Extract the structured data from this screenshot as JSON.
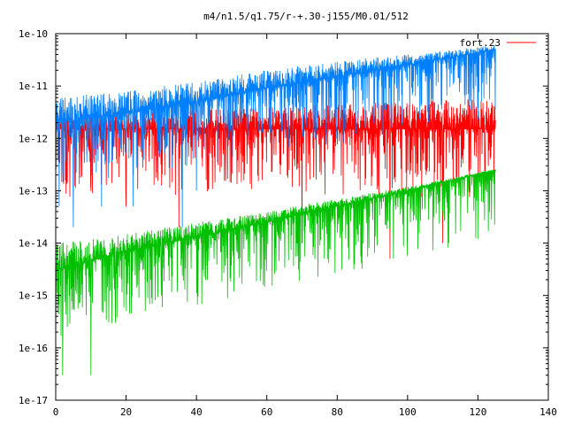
{
  "chart_data": {
    "type": "line",
    "title": "m4/n1.5/q1.75/r-+.30-j155/M0.01/512",
    "xlabel": "",
    "ylabel": "",
    "xlim": [
      0,
      140
    ],
    "ylim": [
      1e-17,
      1e-10
    ],
    "y_scale": "log",
    "grid": false,
    "legend_position": "top-right",
    "x_ticks": [
      0,
      20,
      40,
      60,
      80,
      100,
      120,
      140
    ],
    "x_tick_labels": [
      "0",
      "20",
      "40",
      "60",
      "80",
      "100",
      "120",
      "140"
    ],
    "y_ticks": [
      1e-17,
      1e-16,
      1e-15,
      1e-14,
      1e-13,
      1e-12,
      1e-11,
      1e-10
    ],
    "y_tick_labels": [
      "1e-17",
      "1e-16",
      "1e-15",
      "1e-14",
      "1e-13",
      "1e-12",
      "1e-11",
      "1e-10"
    ],
    "x_extent": [
      0,
      125
    ],
    "series": [
      {
        "name": "fort.23",
        "color": "#ff0000",
        "style": "noisy",
        "envelope_upper": [
          [
            0,
            3e-12
          ],
          [
            20,
            3e-12
          ],
          [
            40,
            3.5e-12
          ],
          [
            60,
            4e-12
          ],
          [
            80,
            4.5e-12
          ],
          [
            100,
            5e-12
          ],
          [
            125,
            6e-12
          ]
        ],
        "median": [
          [
            0,
            1.5e-12
          ],
          [
            40,
            1.5e-12
          ],
          [
            80,
            1.5e-12
          ],
          [
            125,
            1.5e-12
          ]
        ],
        "dips_to": [
          [
            2,
            5e-13
          ],
          [
            10,
            1e-13
          ],
          [
            20,
            5e-14
          ],
          [
            35,
            2e-14
          ],
          [
            70,
            1e-14
          ],
          [
            95,
            5e-15
          ],
          [
            110,
            1e-14
          ],
          [
            122,
            1e-13
          ]
        ]
      },
      {
        "name": "",
        "color": "#0080ff",
        "style": "noisy",
        "envelope_upper": [
          [
            0,
            6e-12
          ],
          [
            20,
            8e-12
          ],
          [
            40,
            1.2e-11
          ],
          [
            60,
            2e-11
          ],
          [
            80,
            3e-11
          ],
          [
            100,
            4e-11
          ],
          [
            125,
            6e-11
          ]
        ],
        "median": [
          [
            0,
            2e-12
          ],
          [
            20,
            3e-12
          ],
          [
            40,
            5e-12
          ],
          [
            60,
            9e-12
          ],
          [
            80,
            1.5e-11
          ],
          [
            100,
            2.5e-11
          ],
          [
            125,
            5e-11
          ]
        ],
        "dips_to": [
          [
            1,
            5e-14
          ],
          [
            5,
            2e-14
          ],
          [
            13,
            5e-14
          ],
          [
            22,
            5e-14
          ],
          [
            36,
            2e-14
          ],
          [
            40,
            1e-13
          ]
        ]
      },
      {
        "name": "",
        "color": "#00c000",
        "style": "noisy",
        "envelope_upper": [
          [
            0,
            1e-14
          ],
          [
            20,
            1.5e-14
          ],
          [
            40,
            2.5e-14
          ],
          [
            60,
            4e-14
          ],
          [
            80,
            7e-14
          ],
          [
            100,
            1.2e-13
          ],
          [
            125,
            2.6e-13
          ]
        ],
        "median": [
          [
            0,
            3e-15
          ],
          [
            20,
            7e-15
          ],
          [
            40,
            1.3e-14
          ],
          [
            60,
            2.5e-14
          ],
          [
            80,
            5e-14
          ],
          [
            100,
            1e-13
          ],
          [
            125,
            2.5e-13
          ]
        ],
        "dips_to": [
          [
            0,
            1e-16
          ],
          [
            2,
            3e-17
          ],
          [
            10,
            3e-17
          ],
          [
            17,
            3e-16
          ],
          [
            30,
            1e-15
          ],
          [
            45,
            5e-15
          ]
        ]
      }
    ]
  }
}
